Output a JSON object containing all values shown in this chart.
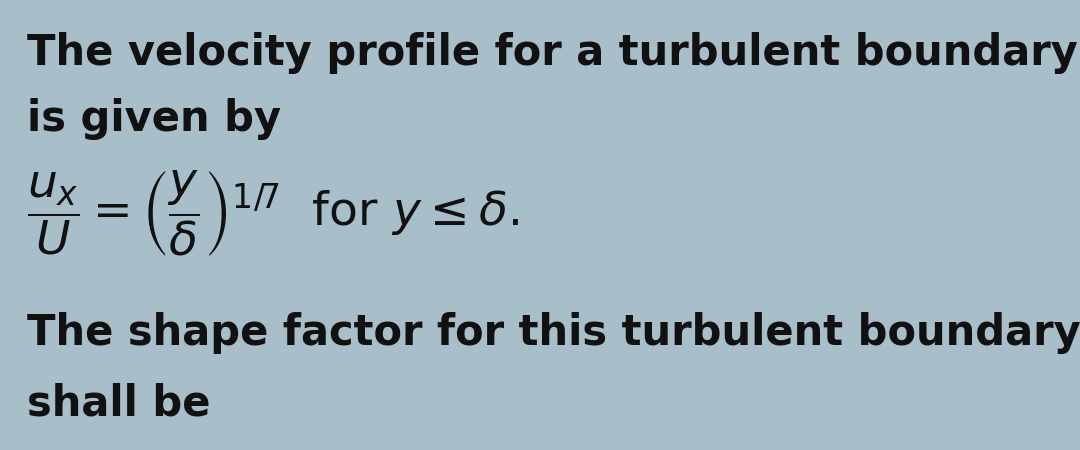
{
  "background_color": "#a8bec8",
  "text_color": "#111111",
  "line1": "The velocity profile for a turbulent boundary layer",
  "line2": "is given by",
  "line3": "The shape factor for this turbulent boundary layer",
  "line4": "shall be",
  "fig_width": 10.8,
  "fig_height": 4.5,
  "dpi": 100,
  "fontsize_main": 30,
  "fontsize_formula": 34
}
